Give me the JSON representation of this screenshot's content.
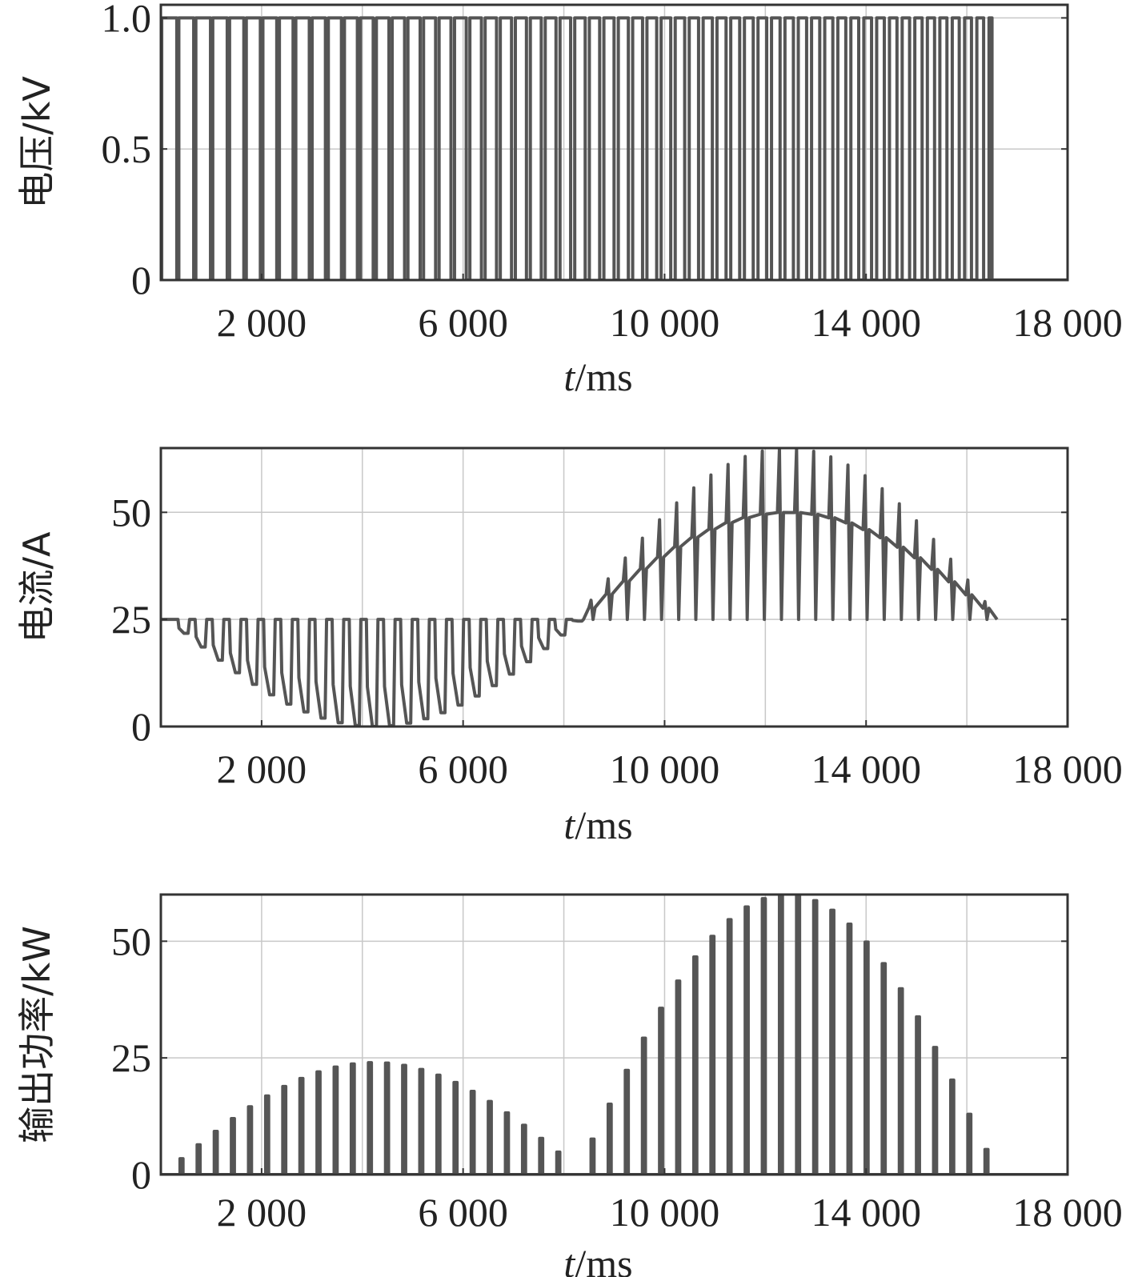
{
  "chart_data": [
    {
      "type": "line",
      "title": "",
      "xlabel_italic": "t",
      "xlabel_rest": "/ms",
      "ylabel": "电压/kV",
      "xlim": [
        0,
        18000
      ],
      "ylim": [
        0,
        1.05
      ],
      "x_ticks": [
        2000,
        6000,
        10000,
        14000,
        18000
      ],
      "x_tick_labels": [
        "2 000",
        "6 000",
        "10 000",
        "14 000",
        "18 000"
      ],
      "y_ticks": [
        0,
        0.5,
        1.0
      ],
      "y_tick_labels": [
        "0",
        "0.5",
        "1.0"
      ],
      "grid": true,
      "series": [
        {
          "signal": "voltage_pulse_train",
          "pulse_high": 1.0,
          "pulse_low": 0.0,
          "period_start_ms": 340,
          "period_end_ms": 240,
          "duty_start": 0.88,
          "duty_end": 0.55,
          "t_end_ms": 16500
        }
      ]
    },
    {
      "type": "line",
      "title": "",
      "xlabel_italic": "t",
      "xlabel_rest": "/ms",
      "ylabel": "电流/A",
      "xlim": [
        0,
        18000
      ],
      "ylim": [
        0,
        65
      ],
      "x_ticks": [
        2000,
        6000,
        10000,
        14000,
        18000
      ],
      "x_tick_labels": [
        "2 000",
        "6 000",
        "10 000",
        "14 000",
        "18 000"
      ],
      "y_ticks": [
        0,
        25,
        50
      ],
      "y_tick_labels": [
        "0",
        "25",
        "50"
      ],
      "grid": true,
      "series": [
        {
          "signal": "current_with_spikes",
          "baseline": 25,
          "envelope_negative_min": 0,
          "envelope_negative_center_ms": 4000,
          "envelope_positive_max": 50,
          "envelope_positive_center_ms": 12400,
          "spike_peak_negative": 0,
          "spike_peak_positive": 65,
          "crossover_ms": 8200,
          "t_end_ms": 16600
        }
      ]
    },
    {
      "type": "line",
      "title": "",
      "xlabel_italic": "t",
      "xlabel_rest": "/ms",
      "ylabel": "输出功率/kW",
      "xlim": [
        0,
        18000
      ],
      "ylim": [
        0,
        60
      ],
      "x_ticks": [
        2000,
        6000,
        10000,
        14000,
        18000
      ],
      "x_tick_labels": [
        "2 000",
        "6 000",
        "10 000",
        "14 000",
        "18 000"
      ],
      "y_ticks": [
        0,
        25,
        50
      ],
      "y_tick_labels": [
        "0",
        "25",
        "50"
      ],
      "grid": true,
      "series": [
        {
          "signal": "power_spikes",
          "first_hump_peak_kw": 24,
          "first_hump_center_ms": 4200,
          "second_hump_peak_kw": 60,
          "second_hump_center_ms": 12500,
          "t_end_ms": 16600
        }
      ]
    }
  ]
}
